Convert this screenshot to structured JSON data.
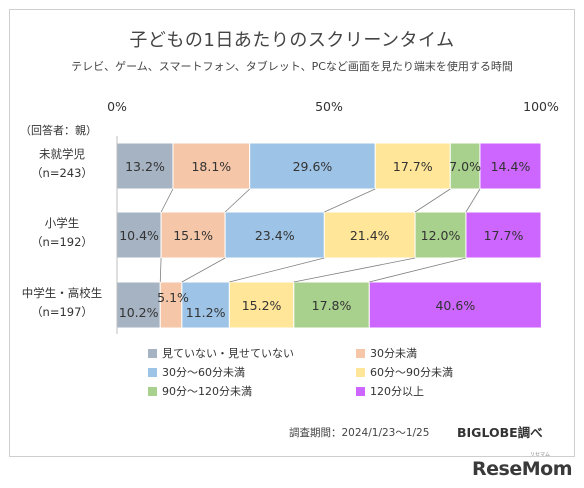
{
  "header": {
    "title": "子どもの1日あたりのスクリーンタイム",
    "subtitle": "テレビ、ゲーム、スマートフォン、タブレット、PCなど画面を見たり端末を使用する時間"
  },
  "footer": {
    "survey_period": "調査期間：2024/1/23〜1/25",
    "credit": "BIGLOBE調べ",
    "watermark": "ReseMom",
    "watermark_mark": "リセマム"
  },
  "chart_data": {
    "type": "bar",
    "orientation": "horizontal-stacked-100",
    "respondent_label": "（回答者：親）",
    "x_ticks": [
      "0%",
      "50%",
      "100%"
    ],
    "xlim": [
      0,
      100
    ],
    "grid": false,
    "legend_position": "bottom",
    "categories": [
      {
        "name": "未就学児",
        "n": "（n=243）"
      },
      {
        "name": "小学生",
        "n": "（n=192）"
      },
      {
        "name": "中学生・高校生",
        "n": "（n=197）"
      }
    ],
    "series": [
      {
        "name": "見ていない・見せていない",
        "color": "#a6b3c3",
        "values": [
          13.2,
          10.4,
          10.2
        ],
        "labels": [
          "13.2%",
          "10.4%",
          "10.2%"
        ]
      },
      {
        "name": "30分未満",
        "color": "#f5c6a7",
        "values": [
          18.1,
          15.1,
          5.1
        ],
        "labels": [
          "18.1%",
          "15.1%",
          "5.1%"
        ]
      },
      {
        "name": "30分〜60分未満",
        "color": "#9dc3e6",
        "values": [
          29.6,
          23.4,
          11.2
        ],
        "labels": [
          "29.6%",
          "23.4%",
          "11.2%"
        ]
      },
      {
        "name": "60分〜90分未満",
        "color": "#ffe699",
        "values": [
          17.7,
          21.4,
          15.2
        ],
        "labels": [
          "17.7%",
          "21.4%",
          "15.2%"
        ]
      },
      {
        "name": "90分〜120分未満",
        "color": "#a9d18e",
        "values": [
          7.0,
          12.0,
          17.8
        ],
        "labels": [
          "7.0%",
          "12.0%",
          "17.8%"
        ]
      },
      {
        "name": "120分以上",
        "color": "#cc66ff",
        "values": [
          14.4,
          17.7,
          40.6
        ],
        "labels": [
          "14.4%",
          "17.7%",
          "40.6%"
        ]
      }
    ]
  }
}
